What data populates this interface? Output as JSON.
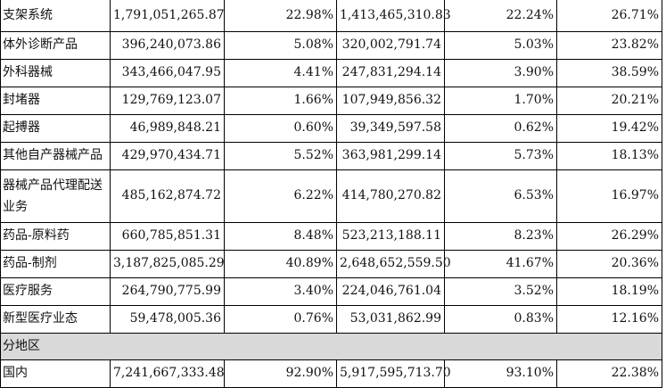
{
  "rows": [
    {
      "name": "支架系统",
      "revenue": "1,791,051,265.87",
      "revenue_ratio": "22.98%",
      "cost": "1,413,465,310.83",
      "cost_ratio": "22.24%",
      "margin": "26.71%"
    },
    {
      "name": "体外诊断产品",
      "revenue": "396,240,073.86",
      "revenue_ratio": "5.08%",
      "cost": "320,002,791.74",
      "cost_ratio": "5.03%",
      "margin": "23.82%"
    },
    {
      "name": "外科器械",
      "revenue": "343,466,047.95",
      "revenue_ratio": "4.41%",
      "cost": "247,831,294.14",
      "cost_ratio": "3.90%",
      "margin": "38.59%"
    },
    {
      "name": "封堵器",
      "revenue": "129,769,123.07",
      "revenue_ratio": "1.66%",
      "cost": "107,949,856.32",
      "cost_ratio": "1.70%",
      "margin": "20.21%"
    },
    {
      "name": "起搏器",
      "revenue": "46,989,848.21",
      "revenue_ratio": "0.60%",
      "cost": "39,349,597.58",
      "cost_ratio": "0.62%",
      "margin": "19.42%"
    },
    {
      "name": "其他自产器械产品",
      "revenue": "429,970,434.71",
      "revenue_ratio": "5.52%",
      "cost": "363,981,299.14",
      "cost_ratio": "5.73%",
      "margin": "18.13%"
    },
    {
      "name": "器械产品代理配送业务",
      "revenue": "485,162,874.72",
      "revenue_ratio": "6.22%",
      "cost": "414,780,270.82",
      "cost_ratio": "6.53%",
      "margin": "16.97%"
    },
    {
      "name": "药品-原料药",
      "revenue": "660,785,851.31",
      "revenue_ratio": "8.48%",
      "cost": "523,213,188.11",
      "cost_ratio": "8.23%",
      "margin": "26.29%"
    },
    {
      "name": "药品-制剂",
      "revenue": "3,187,825,085.29",
      "revenue_ratio": "40.89%",
      "cost": "2,648,652,559.50",
      "cost_ratio": "41.67%",
      "margin": "20.36%"
    },
    {
      "name": "医疗服务",
      "revenue": "264,790,775.99",
      "revenue_ratio": "3.40%",
      "cost": "224,046,761.04",
      "cost_ratio": "3.52%",
      "margin": "18.19%"
    },
    {
      "name": "新型医疗业态",
      "revenue": "59,478,005.36",
      "revenue_ratio": "0.76%",
      "cost": "53,031,862.99",
      "cost_ratio": "0.83%",
      "margin": "12.16%"
    }
  ],
  "section": {
    "label": "分地区"
  },
  "region_rows": [
    {
      "name": "国内",
      "revenue": "7,241,667,333.48",
      "revenue_ratio": "92.90%",
      "cost": "5,917,595,713.70",
      "cost_ratio": "93.10%",
      "margin": "22.38%"
    }
  ]
}
